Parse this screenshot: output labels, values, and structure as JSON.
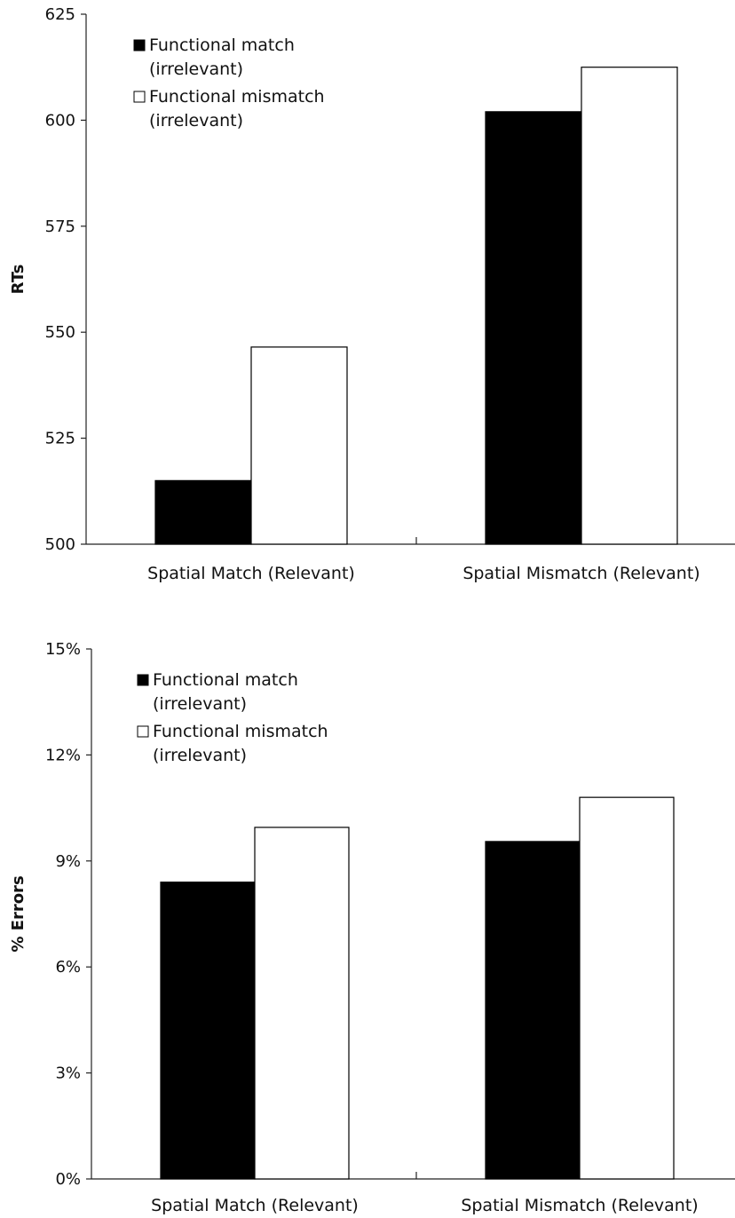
{
  "chart_data": [
    {
      "type": "bar",
      "categories": [
        "Spatial Match (Relevant)",
        "Spatial Mismatch (Relevant)"
      ],
      "ylabel": "RTs",
      "xlabel": "",
      "ylim": [
        500,
        625
      ],
      "yticks": [
        500,
        525,
        550,
        575,
        600,
        625
      ],
      "ytick_labels": [
        "500",
        "525",
        "550",
        "575",
        "600",
        "625"
      ],
      "legend_position": "top-left",
      "series": [
        {
          "name": "Functional match",
          "name_line2": "(irrelevant)",
          "color": "#000000",
          "values": [
            515,
            602
          ]
        },
        {
          "name": "Functional mismatch",
          "name_line2": "(irrelevant)",
          "color": "#ffffff",
          "values": [
            546.5,
            612.5
          ]
        }
      ]
    },
    {
      "type": "bar",
      "categories": [
        "Spatial Match (Relevant)",
        "Spatial Mismatch (Relevant)"
      ],
      "ylabel": "% Errors",
      "xlabel": "",
      "ylim": [
        0,
        15
      ],
      "yticks": [
        0,
        3,
        6,
        9,
        12,
        15
      ],
      "ytick_labels": [
        "0%",
        "3%",
        "6%",
        "9%",
        "12%",
        "15%"
      ],
      "legend_position": "top-left",
      "series": [
        {
          "name": "Functional match",
          "name_line2": "(irrelevant)",
          "color": "#000000",
          "values": [
            8.4,
            9.55
          ]
        },
        {
          "name": "Functional mismatch",
          "name_line2": "(irrelevant)",
          "color": "#ffffff",
          "values": [
            9.95,
            10.8
          ]
        }
      ]
    }
  ]
}
